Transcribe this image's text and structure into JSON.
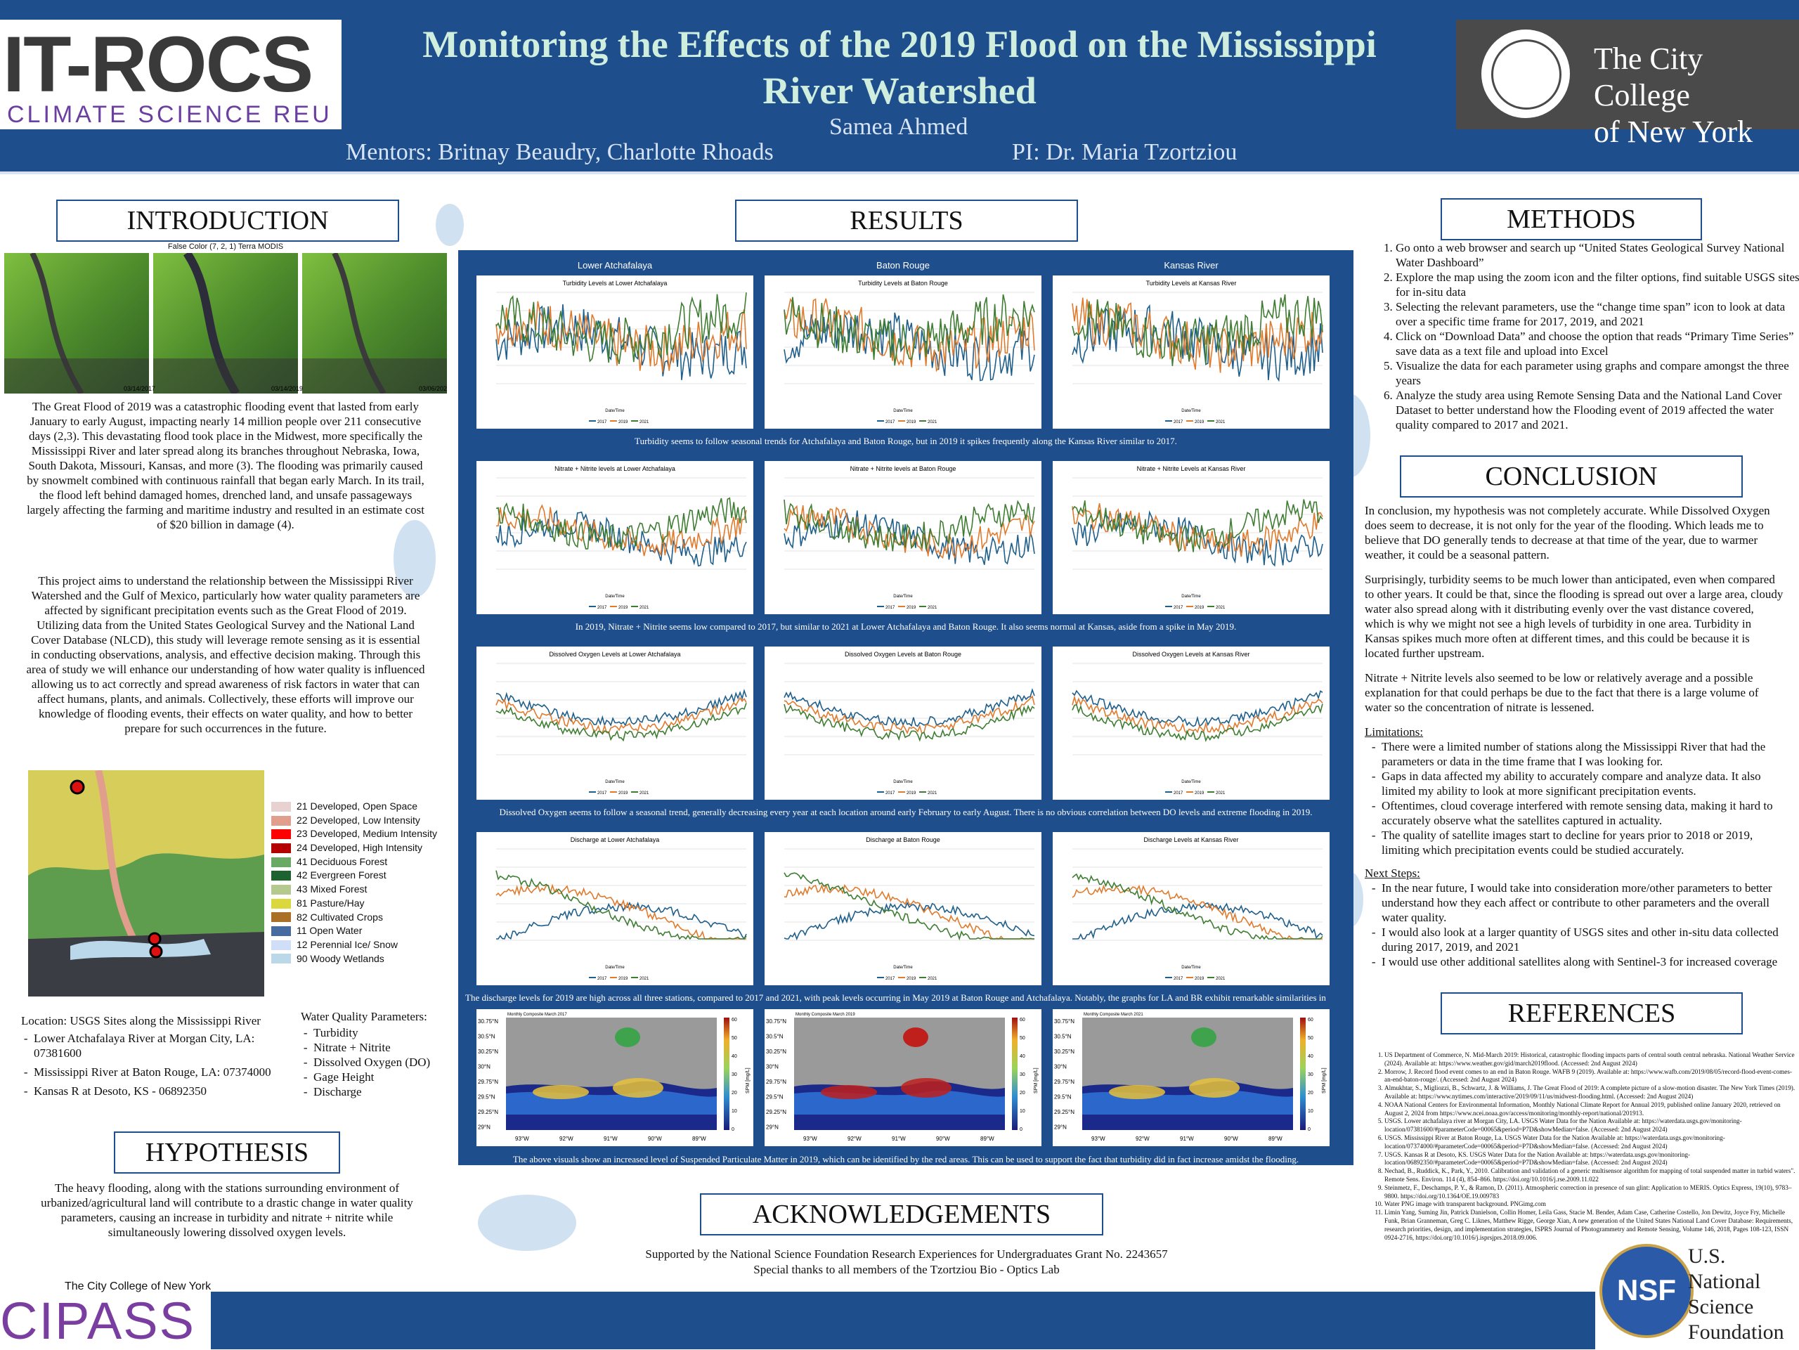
{
  "header": {
    "title_line1": "Monitoring the Effects of the 2019 Flood on the Mississippi",
    "title_line2": "River Watershed",
    "author": "Samea Ahmed",
    "mentors": "Mentors: Britnay Beaudry, Charlotte Rhoads",
    "pi": "PI: Dr. Maria Tzortziou",
    "logo_left_main": "IT-ROCS",
    "logo_left_sub": "CLIMATE SCIENCE REU",
    "logo_right_line1": "The City College",
    "logo_right_line2": "of New York"
  },
  "intro": {
    "title": "INTRODUCTION",
    "sat_caption": "False Color (7, 2, 1) Terra MODIS",
    "sat_dates": [
      "03/14/2017",
      "03/14/2019",
      "03/06/2021"
    ],
    "para1": "The Great Flood of 2019 was a catastrophic flooding event that lasted from early January to early August, impacting nearly 14 million people over 211 consecutive days (2,3). This devastating flood took place in the Midwest, more specifically the Mississippi River and later spread along its branches throughout Nebraska, Iowa, South Dakota, Missouri, Kansas, and more (3). The flooding was primarily caused by snowmelt combined with continuous rainfall that began early March. In its trail, the flood left behind damaged homes, drenched land, and unsafe passageways largely affecting the farming and maritime industry and resulted in an estimate cost of $20 billion in damage (4).",
    "para2": "This project aims to understand the relationship between the Mississippi River Watershed and the Gulf of Mexico, particularly how water quality parameters are affected by significant precipitation events such as the Great Flood of 2019. Utilizing data from the United States Geological Survey and the National Land Cover Database (NLCD), this study will leverage remote sensing as it is essential in conducting observations, analysis, and effective decision making. Through this area of study we will enhance our understanding of how water quality is influenced allowing us to act correctly and spread awareness of risk factors in water that can affect humans, plants, and animals. Collectively, these efforts will improve our knowledge of flooding events, their effects on water quality, and how to better prepare for such occurrences in the future.",
    "legend": [
      {
        "label": "21 Developed, Open Space",
        "color": "#e8d1d1"
      },
      {
        "label": "22 Developed, Low Intensity",
        "color": "#e29e8c"
      },
      {
        "label": "23 Developed, Medium Intensity",
        "color": "#ff0000"
      },
      {
        "label": "24 Developed, High Intensity",
        "color": "#b50000"
      },
      {
        "label": "41 Deciduous Forest",
        "color": "#68aa63"
      },
      {
        "label": "42 Evergreen Forest",
        "color": "#1c6330"
      },
      {
        "label": "43 Mixed Forest",
        "color": "#b5c98e"
      },
      {
        "label": "81 Pasture/Hay",
        "color": "#dbd83d"
      },
      {
        "label": "82 Cultivated Crops",
        "color": "#ab7028"
      },
      {
        "label": "11 Open Water",
        "color": "#466b9f"
      },
      {
        "label": "12 Perennial Ice/ Snow",
        "color": "#d1def8"
      },
      {
        "label": "90 Woody Wetlands",
        "color": "#bad8ea"
      }
    ],
    "location_title": "Location: USGS Sites along the Mississippi River",
    "locations": [
      "Lower Atchafalaya River at Morgan City, LA: 07381600",
      "Mississippi River at Baton Rouge, LA: 07374000",
      "Kansas R at Desoto, KS - 06892350"
    ],
    "params_title": "Water Quality Parameters:",
    "params": [
      "Turbidity",
      "Nitrate + Nitrite",
      "Dissolved Oxygen (DO)",
      "Gage Height",
      "Discharge"
    ]
  },
  "hypothesis": {
    "title": "HYPOTHESIS",
    "text": "The heavy flooding, along with the stations surrounding environment of urbanized/agricultural land will contribute to a drastic change in water quality parameters, causing an increase in turbidity and nitrate + nitrite while simultaneously lowering dissolved oxygen levels."
  },
  "results": {
    "title": "RESULTS",
    "columns": [
      "Lower Atchafalaya",
      "Baton Rouge",
      "Kansas River"
    ],
    "row_titles": [
      [
        "Turbidity Levels at Lower Atchafalaya",
        "Turbidity Levels at Baton Rouge",
        "Turbidity Levels at Kansas River"
      ],
      [
        "Nitrate + Nitrite levels at Lower Atchafalaya",
        "Nitrate + Nitrite levels at Baton Rouge",
        "Nitrate + Nitrite Levels at Kansas River"
      ],
      [
        "Dissolved Oxygen Levels at Lower Atchafalaya",
        "Dissolved Oxygen Levels at Baton Rouge",
        "Dissolved Oxygen Levels at Kansas River"
      ],
      [
        "Discharge at Lower Atchafalaya",
        "Discharge at Baton Rouge",
        "Discharge Levels at Kansas River"
      ]
    ],
    "captions": [
      "Turbidity seems to follow seasonal trends for Atchafalaya and Baton Rouge, but in 2019 it spikes frequently along the Kansas River similar to 2017.",
      "In 2019, Nitrate + Nitrite seems low compared to 2017, but similar  to 2021 at Lower Atchafalaya and Baton Rouge. It also seems normal at Kansas, aside from a spike in May 2019.",
      "Dissolved Oxygen seems to follow a seasonal trend,  generally decreasing every year at each location around early February to early August. There is no obvious correlation between DO levels and extreme flooding in 2019.",
      "The discharge levels  for 2019 are high across all three stations, compared to 2017 and 2021, with peak levels occurring in May 2019 at Baton Rouge and Atchafalaya.  Notably, the graphs for LA and BR exhibit remarkable similarities in shape and magnitude.",
      "The above visuals show an increased level of  Suspended Particulate Matter  in 2019, which can be identified by the red areas. This can be used to support the fact that turbidity did in fact increase amidst the flooding."
    ],
    "spm_titles": [
      "Monthly Composite March 2017",
      "Monthly Composite March 2019",
      "Monthly Composite March 2021"
    ],
    "spm_lat_ticks": [
      "30.75°N",
      "30.5°N",
      "30.25°N",
      "30°N",
      "29.75°N",
      "29.5°N",
      "29.25°N",
      "29°N"
    ],
    "spm_lon_ticks": [
      "93°W",
      "92°W",
      "91°W",
      "90°W",
      "89°W"
    ],
    "spm_cbar_ticks": [
      "60",
      "50",
      "40",
      "30",
      "20",
      "10",
      "0"
    ],
    "spm_cbar_label": "SPM [mg/L]",
    "xlabel": "Date/Time",
    "legend_years": [
      "2017",
      "2019",
      "2021"
    ]
  },
  "methods": {
    "title": "METHODS",
    "steps": [
      "Go onto a web browser and search up “United States Geological Survey National Water Dashboard”",
      "Explore the map using the zoom icon and the filter options, find suitable USGS sites for in-situ data",
      "Selecting the relevant parameters, use the “change time span” icon to look at data over a specific time frame for 2017, 2019, and 2021",
      "Click on “Download Data” and choose the option that reads “Primary Time Series” save data as a text file and upload into Excel",
      "Visualize the data for each parameter using graphs and compare amongst the three years",
      "Analyze the study area using Remote Sensing Data and the National Land Cover Dataset to better understand how the Flooding event of 2019 affected the water quality compared to 2017 and 2021."
    ]
  },
  "conclusion": {
    "title": "CONCLUSION",
    "p1": "In conclusion, my hypothesis was not completely accurate. While Dissolved Oxygen does seem to decrease, it is not only for the year of the flooding. Which leads me to believe that DO generally tends to decrease at that time of the year, due to warmer weather, it could be a seasonal pattern.",
    "p2": "Surprisingly, turbidity seems to be much lower than anticipated, even when compared to other years. It could be that, since the flooding is spread out over a large area, cloudy water also spread along with it distributing evenly over the vast distance covered, which is why we might not see a high levels of turbidity in one area. Turbidity in Kansas spikes much more often at different times, and this could be because it is located further upstream.",
    "p3": "Nitrate + Nitrite levels also seemed to be low or relatively average and a possible explanation for that could perhaps be due to the fact that there is a large volume of water so the concentration of nitrate is lessened.",
    "limitations_title": "Limitations:",
    "limitations": [
      "There were a limited number of stations along the Mississippi River that had the parameters or data in the time frame that I was looking for.",
      "Gaps in data affected my ability to accurately compare and analyze data. It also limited my ability to look at more significant precipitation events.",
      "Oftentimes, cloud coverage interfered with remote sensing data, making it hard to accurately observe what the satellites captured in actuality.",
      "The quality of satellite images start to decline for years prior to 2018 or 2019, limiting which precipitation events could be studied accurately."
    ],
    "next_title": "Next Steps:",
    "next": [
      "In the near future, I would take into consideration more/other parameters to better understand how they each affect or contribute to other parameters and the overall water quality.",
      "I would also look at a larger quantity of USGS sites and other in-situ data collected during 2017, 2019, and 2021",
      "I would use other additional satellites along with Sentinel-3  for increased coverage"
    ]
  },
  "references": {
    "title": "REFERENCES",
    "items": [
      "US Department of Commerce, N. Mid-March 2019: Historical, catastrophic flooding impacts parts of central south central nebraska. National Weather Service (2024). Available at: https://www.weather.gov/gid/march2019flood. (Accessed: 2nd August 2024)",
      "Morrow, J. Record flood event comes to an end in Baton Rouge. WAFB 9 (2019). Available at: https://www.wafb.com/2019/08/05/record-flood-event-comes-an-end-baton-rouge/. (Accessed: 2nd August 2024)",
      "Almukhtar, S., Migliozzi, B., Schwartz, J. & Williams, J. The Great Flood of 2019: A complete picture of a slow-motion disaster. The New York Times (2019). Available at: https://www.nytimes.com/interactive/2019/09/11/us/midwest-flooding.html. (Accessed: 2nd August 2024)",
      "NOAA National Centers for Environmental Information, Monthly National Climate Report for Annual 2019, published online January 2020, retrieved on August 2, 2024 from https://www.ncei.noaa.gov/access/monitoring/monthly-report/national/201913.",
      "USGS. Lower atchafalaya river at Morgan City, LA. USGS Water Data for the Nation Available at: https://waterdata.usgs.gov/monitoring-location/07381600/#parameterCode=00065&period=P7D&showMedian=false. (Accessed: 2nd August 2024)",
      "USGS. Mississippi River at Baton Rouge, La. USGS Water Data for the Nation Available at: https://waterdata.usgs.gov/monitoring-location/07374000/#parameterCode=00065&period=P7D&showMedian=false. (Accessed: 2nd August 2024)",
      "USGS. Kansas R at Desoto, KS. USGS Water Data for the Nation Available at: https://waterdata.usgs.gov/monitoring-location/06892350/#parameterCode=00065&period=P7D&showMedian=false. (Accessed: 2nd August 2024)",
      "Nechad, B., Ruddick, K., Park, Y., 2010. Calibration and validation of a generic multisensor algorithm for mapping of total suspended matter in turbid waters\". Remote Sens. Environ. 114 (4), 854–866. https://doi.org/10.1016/j.rse.2009.11.022",
      "Steinmetz, F., Deschamps, P. Y., & Ramon, D. (2011). Atmospheric correction in presence of sun glint: Application to MERIS. Optics Express, 19(10), 9783–9800. https://doi.org/10.1364/OE.19.009783",
      "Water PNG image with transparent background. PNGimg.com",
      "Limin Yang, Suming Jin, Patrick Danielson, Collin Homer, Leila Gass, Stacie M. Bender, Adam Case, Catherine Costello, Jon Dewitz, Joyce Fry, Michelle Funk, Brian Granneman, Greg C. Liknes, Matthew Rigge, George Xian, A new generation of the United States National Land Cover Database: Requirements, research priorities, design, and implementation strategies, ISPRS Journal of Photogrammetry and Remote Sensing, Volume 146, 2018, Pages 108-123, ISSN 0924-2716, https://doi.org/10.1016/j.isprsjprs.2018.09.006."
    ]
  },
  "acknowledgements": {
    "title": "ACKNOWLEDGEMENTS",
    "line1": "Supported by the National Science Foundation Research Experiences for Undergraduates Grant No. 2243657",
    "line2": "Special thanks to all members of the Tzortziou Bio - Optics Lab"
  },
  "footer": {
    "cipass_small": "The City College of New York",
    "cipass": "CIPASS",
    "nsf_seal": "NSF",
    "nsf_line1": "U.S. National",
    "nsf_line2": "Science",
    "nsf_line3": "Foundation"
  },
  "colors": {
    "header_blue": "#1f4e8c",
    "series_2017": "#1f5f8b",
    "series_2019": "#e07b2e",
    "series_2021": "#3f7d33"
  }
}
